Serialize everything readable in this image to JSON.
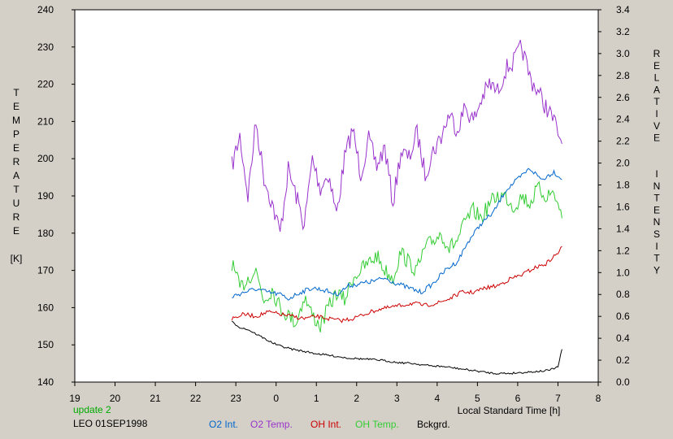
{
  "colors": {
    "background": "#d4d0c8",
    "plot_background": "#ffffff",
    "o2_int": "#0066cc",
    "o2_temp": "#9933cc",
    "oh_int": "#cc0000",
    "oh_temp": "#33cc33",
    "bckgrd": "#000000",
    "update": "#00aa00"
  },
  "footer": {
    "update": "update 2",
    "station": "LEO 01SEP1998"
  },
  "chart_data": {
    "type": "line",
    "title": "",
    "xlabel": "Local Standard Time [h]",
    "ylabel_left": [
      "T",
      "E",
      "M",
      "P",
      "E",
      "R",
      "A",
      "T",
      "U",
      "R",
      "E",
      "",
      "[K]"
    ],
    "ylabel_right": [
      "R",
      "E",
      "L",
      "A",
      "T",
      "I",
      "V",
      "E",
      "",
      "",
      "I",
      "N",
      "T",
      "E",
      "N",
      "S",
      "I",
      "T",
      "Y"
    ],
    "x_ticks": [
      "19",
      "20",
      "21",
      "22",
      "23",
      "0",
      "1",
      "2",
      "3",
      "4",
      "5",
      "6",
      "7",
      "8"
    ],
    "xlim": [
      19,
      32
    ],
    "y_left_ticks": [
      "140",
      "150",
      "160",
      "170",
      "180",
      "190",
      "200",
      "210",
      "220",
      "230",
      "240"
    ],
    "ylim_left": [
      140,
      240
    ],
    "y_right_ticks": [
      "0.0",
      "0.2",
      "0.4",
      "0.6",
      "0.8",
      "1.0",
      "1.2",
      "1.4",
      "1.6",
      "1.8",
      "2.0",
      "2.2",
      "2.4",
      "2.6",
      "2.8",
      "3.0",
      "3.2",
      "3.4"
    ],
    "ylim_right": [
      0,
      3.4
    ],
    "legend_position": "bottom",
    "series": [
      {
        "name": "O2 Int.",
        "axis": "right",
        "color": "#0066cc",
        "x": [
          22.9,
          23.2,
          23.5,
          23.8,
          24.1,
          24.3,
          24.6,
          24.9,
          25.2,
          25.5,
          25.8,
          26.1,
          26.4,
          26.7,
          27.0,
          27.3,
          27.6,
          27.9,
          28.2,
          28.5,
          28.8,
          29.1,
          29.4,
          29.7,
          30.0,
          30.3,
          30.6,
          30.9,
          31.1
        ],
        "y": [
          0.78,
          0.82,
          0.85,
          0.82,
          0.8,
          0.76,
          0.82,
          0.86,
          0.84,
          0.8,
          0.88,
          0.9,
          0.92,
          0.95,
          0.9,
          0.86,
          0.82,
          0.9,
          1.02,
          1.1,
          1.3,
          1.45,
          1.55,
          1.75,
          1.85,
          1.95,
          1.85,
          1.92,
          1.85
        ]
      },
      {
        "name": "O2 Temp.",
        "axis": "left",
        "color": "#9933cc",
        "x": [
          22.9,
          23.1,
          23.3,
          23.5,
          23.7,
          23.9,
          24.1,
          24.3,
          24.5,
          24.7,
          24.9,
          25.1,
          25.3,
          25.5,
          25.7,
          25.9,
          26.1,
          26.3,
          26.5,
          26.7,
          26.9,
          27.1,
          27.3,
          27.5,
          27.7,
          27.9,
          28.1,
          28.3,
          28.5,
          28.7,
          28.9,
          29.1,
          29.3,
          29.5,
          29.7,
          29.9,
          30.1,
          30.3,
          30.5,
          30.7,
          30.9,
          31.1
        ],
        "y": [
          198,
          206,
          190,
          210,
          195,
          188,
          180,
          197,
          190,
          182,
          200,
          192,
          196,
          185,
          200,
          208,
          196,
          205,
          198,
          203,
          188,
          202,
          200,
          207,
          196,
          202,
          206,
          212,
          208,
          214,
          210,
          216,
          220,
          218,
          224,
          226,
          230,
          222,
          218,
          214,
          210,
          204
        ]
      },
      {
        "name": "OH Int.",
        "axis": "right",
        "color": "#cc0000",
        "x": [
          22.9,
          23.2,
          23.5,
          23.8,
          24.1,
          24.4,
          24.7,
          25.0,
          25.3,
          25.6,
          25.9,
          26.2,
          26.5,
          26.8,
          27.1,
          27.4,
          27.7,
          28.0,
          28.3,
          28.6,
          28.9,
          29.2,
          29.5,
          29.8,
          30.1,
          30.4,
          30.7,
          31.0,
          31.1
        ],
        "y": [
          0.58,
          0.62,
          0.6,
          0.64,
          0.62,
          0.6,
          0.58,
          0.6,
          0.58,
          0.56,
          0.58,
          0.62,
          0.66,
          0.68,
          0.7,
          0.72,
          0.7,
          0.72,
          0.76,
          0.82,
          0.82,
          0.86,
          0.88,
          0.94,
          0.98,
          1.04,
          1.08,
          1.18,
          1.24
        ]
      },
      {
        "name": "OH Temp.",
        "axis": "left",
        "color": "#33cc33",
        "x": [
          22.9,
          23.1,
          23.3,
          23.5,
          23.7,
          23.9,
          24.1,
          24.3,
          24.5,
          24.7,
          24.9,
          25.1,
          25.3,
          25.5,
          25.7,
          25.9,
          26.1,
          26.3,
          26.5,
          26.7,
          26.9,
          27.1,
          27.3,
          27.5,
          27.7,
          27.9,
          28.1,
          28.3,
          28.5,
          28.7,
          28.9,
          29.1,
          29.3,
          29.5,
          29.7,
          29.9,
          30.1,
          30.3,
          30.5,
          30.7,
          30.9,
          31.1
        ],
        "y": [
          172,
          165,
          168,
          170,
          162,
          165,
          160,
          158,
          156,
          163,
          158,
          155,
          160,
          164,
          162,
          168,
          170,
          172,
          174,
          170,
          168,
          175,
          172,
          170,
          176,
          178,
          180,
          176,
          178,
          183,
          186,
          184,
          188,
          190,
          190,
          187,
          190,
          188,
          192,
          190,
          191,
          184
        ]
      },
      {
        "name": "Bckgrd.",
        "axis": "right",
        "color": "#000000",
        "x": [
          22.9,
          23.1,
          23.3,
          23.5,
          23.7,
          23.9,
          24.1,
          24.4,
          24.7,
          25.0,
          25.4,
          25.8,
          26.2,
          26.6,
          27.0,
          27.4,
          27.8,
          28.2,
          28.6,
          29.0,
          29.4,
          29.8,
          30.2,
          30.6,
          30.8,
          31.0,
          31.1
        ],
        "y": [
          0.55,
          0.5,
          0.48,
          0.44,
          0.4,
          0.36,
          0.33,
          0.3,
          0.28,
          0.26,
          0.24,
          0.22,
          0.21,
          0.2,
          0.18,
          0.17,
          0.15,
          0.14,
          0.12,
          0.1,
          0.08,
          0.08,
          0.09,
          0.1,
          0.11,
          0.14,
          0.3
        ]
      }
    ]
  }
}
